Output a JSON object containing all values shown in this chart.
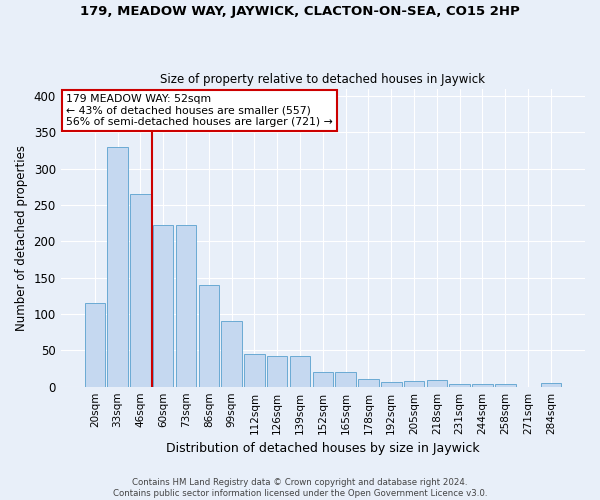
{
  "title": "179, MEADOW WAY, JAYWICK, CLACTON-ON-SEA, CO15 2HP",
  "subtitle": "Size of property relative to detached houses in Jaywick",
  "xlabel": "Distribution of detached houses by size in Jaywick",
  "ylabel": "Number of detached properties",
  "categories": [
    "20sqm",
    "33sqm",
    "46sqm",
    "60sqm",
    "73sqm",
    "86sqm",
    "99sqm",
    "112sqm",
    "126sqm",
    "139sqm",
    "152sqm",
    "165sqm",
    "178sqm",
    "192sqm",
    "205sqm",
    "218sqm",
    "231sqm",
    "244sqm",
    "258sqm",
    "271sqm",
    "284sqm"
  ],
  "values": [
    115,
    330,
    265,
    222,
    222,
    140,
    90,
    45,
    42,
    42,
    20,
    20,
    11,
    6,
    8,
    9,
    4,
    4,
    3,
    0,
    5
  ],
  "bar_color": "#c5d8f0",
  "bar_edge_color": "#6aaad4",
  "background_color": "#e8eff9",
  "grid_color": "#ffffff",
  "property_line_x": 2.5,
  "property_label": "179 MEADOW WAY: 52sqm",
  "annotation_line1": "← 43% of detached houses are smaller (557)",
  "annotation_line2": "56% of semi-detached houses are larger (721) →",
  "annotation_box_color": "#ffffff",
  "annotation_box_edge": "#cc0000",
  "vline_color": "#cc0000",
  "ylim": [
    0,
    410
  ],
  "yticks": [
    0,
    50,
    100,
    150,
    200,
    250,
    300,
    350,
    400
  ],
  "footer1": "Contains HM Land Registry data © Crown copyright and database right 2024.",
  "footer2": "Contains public sector information licensed under the Open Government Licence v3.0."
}
